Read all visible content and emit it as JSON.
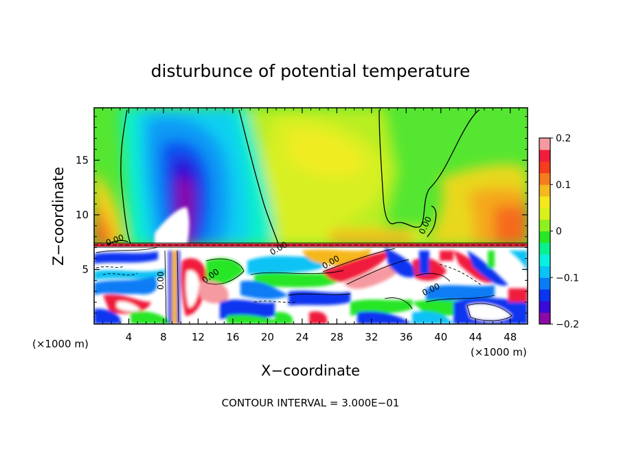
{
  "chart_data": {
    "type": "heatmap",
    "title": "disturbunce of potential temperature",
    "xlabel": "X−coordinate",
    "ylabel": "Z−coordinate",
    "x_unit_left": "(×1000 m)",
    "x_unit_right": "(×1000 m)",
    "x_ticks": [
      "4",
      "8",
      "12",
      "16",
      "20",
      "24",
      "28",
      "32",
      "36",
      "40",
      "44",
      "48"
    ],
    "y_ticks": [
      "5",
      "10",
      "15"
    ],
    "xlim": [
      0,
      50
    ],
    "ylim": [
      0,
      19.8
    ],
    "colorbar": {
      "min": -0.2,
      "max": 0.2,
      "ticks": [
        "0.2",
        "0.1",
        "0",
        "−0.1",
        "−0.2"
      ],
      "colors": [
        "#8b0aa5",
        "#3a0ad8",
        "#0a35f0",
        "#0a7cf5",
        "#0ac2f5",
        "#0af0e0",
        "#0af090",
        "#28e628",
        "#8ef01e",
        "#d8f01e",
        "#f5e81e",
        "#f5b81e",
        "#f57c1e",
        "#f53c1e",
        "#f01e3c",
        "#f59aa0"
      ]
    },
    "contour_labels": [
      "0.00",
      "0.00",
      "0.00",
      "0.00",
      "0.00",
      "0.00",
      "0.00"
    ],
    "footer": "CONTOUR INTERVAL = 3.000E−01"
  }
}
